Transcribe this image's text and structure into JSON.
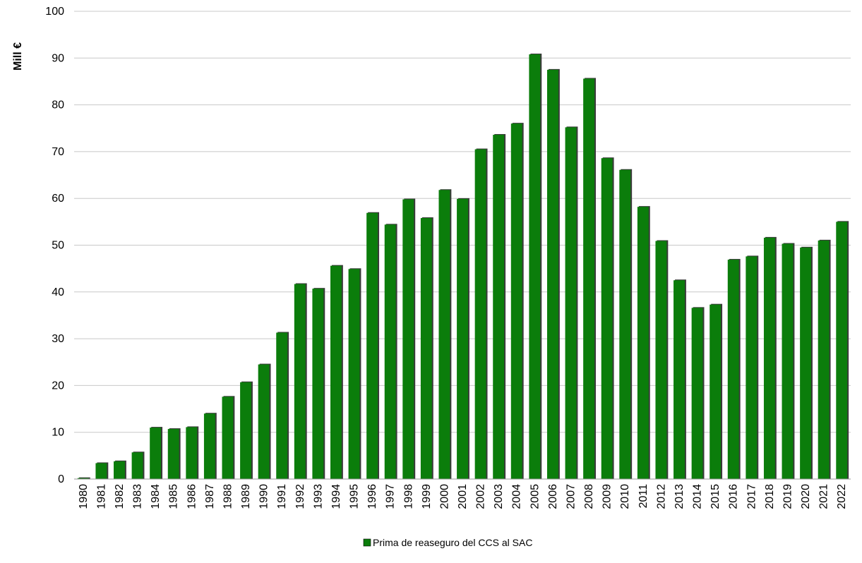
{
  "chart_data": {
    "type": "bar",
    "title": "",
    "xlabel": "",
    "ylabel": "Mill €",
    "ylim": [
      0,
      100
    ],
    "yticks": [
      0,
      10,
      20,
      30,
      40,
      50,
      60,
      70,
      80,
      90,
      100
    ],
    "grid": true,
    "legend_position": "bottom",
    "categories": [
      "1980",
      "1981",
      "1982",
      "1983",
      "1984",
      "1985",
      "1986",
      "1987",
      "1988",
      "1989",
      "1990",
      "1991",
      "1992",
      "1993",
      "1994",
      "1995",
      "1996",
      "1997",
      "1998",
      "1999",
      "2000",
      "2001",
      "2002",
      "2003",
      "2004",
      "2005",
      "2006",
      "2007",
      "2008",
      "2009",
      "2010",
      "2011",
      "2012",
      "2013",
      "2014",
      "2015",
      "2016",
      "2017",
      "2018",
      "2019",
      "2020",
      "2021",
      "2022"
    ],
    "series": [
      {
        "name": "Prima de reaseguro del CCS al SAC",
        "color": "#0b7d0b",
        "values": [
          0.2,
          3.4,
          3.8,
          5.7,
          11.0,
          10.7,
          11.1,
          14.0,
          17.6,
          20.7,
          24.5,
          31.3,
          41.7,
          40.7,
          45.6,
          44.9,
          56.9,
          54.4,
          59.8,
          55.8,
          61.8,
          59.9,
          70.5,
          73.6,
          76.0,
          90.8,
          87.5,
          75.2,
          85.6,
          68.6,
          66.1,
          58.2,
          50.9,
          42.5,
          36.6,
          37.3,
          46.9,
          47.6,
          51.6,
          50.3,
          49.5,
          51.0,
          55.0
        ]
      }
    ]
  }
}
